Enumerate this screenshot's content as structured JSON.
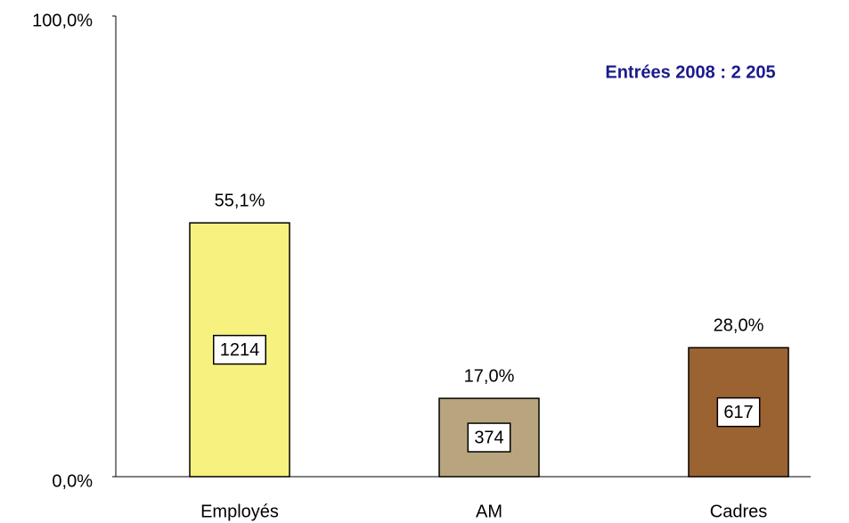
{
  "chart_data": {
    "type": "bar",
    "annotation": "Entrées 2008 : 2 205",
    "categories": [
      "Employés",
      "AM",
      "Cadres"
    ],
    "values": [
      55.1,
      17.0,
      28.0
    ],
    "value_labels": [
      "55,1%",
      "17,0%",
      "28,0%"
    ],
    "counts": [
      1214,
      374,
      617
    ],
    "colors": [
      "#f7f17f",
      "#b8a57e",
      "#9b6332"
    ],
    "ylim": [
      0,
      100
    ],
    "yticks": [
      {
        "value": 0,
        "label": "0,0%"
      },
      {
        "value": 100,
        "label": "100,0%"
      }
    ],
    "grid": false
  }
}
